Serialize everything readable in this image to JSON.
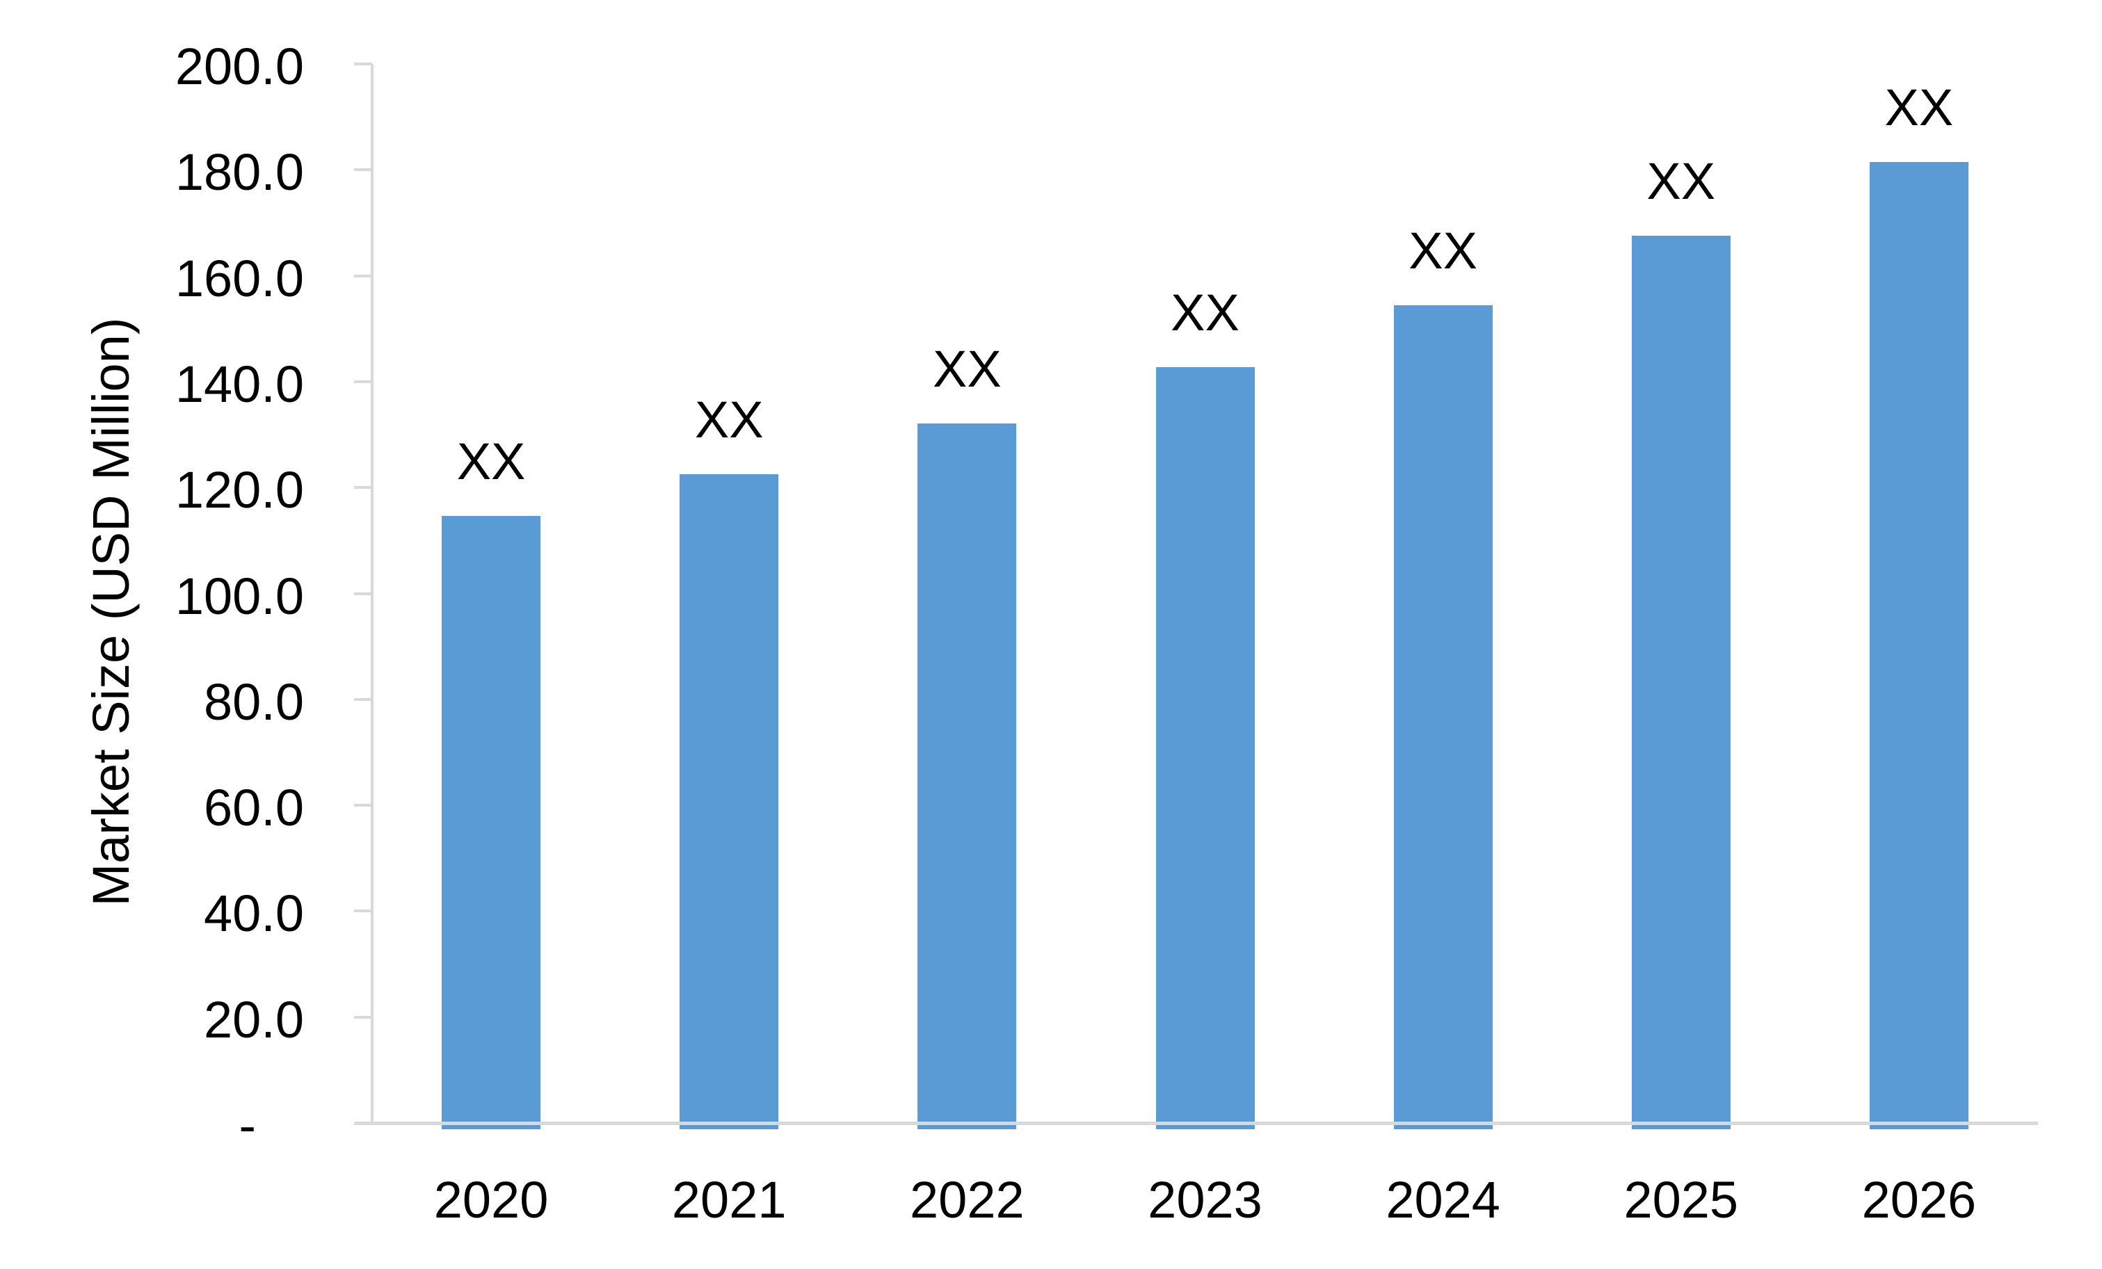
{
  "chart_data": {
    "type": "bar",
    "title": "",
    "categories": [
      "2020",
      "2021",
      "2022",
      "2023",
      "2024",
      "2025",
      "2026"
    ],
    "values": [
      114.6,
      122.5,
      132.1,
      142.7,
      154.4,
      167.6,
      181.5
    ],
    "bar_labels": [
      "XX",
      "XX",
      "XX",
      "XX",
      "XX",
      "XX",
      "XX"
    ],
    "xlabel": "",
    "ylabel": "Market Size (USD Million)",
    "ylim": [
      0,
      200
    ],
    "ytick_step": 20,
    "ytick_labels": [
      "200.0",
      "180.0",
      "160.0",
      "140.0",
      "120.0",
      "100.0",
      "80.0",
      "60.0",
      "40.0",
      "20.0",
      "-"
    ],
    "grid": false,
    "legend": "none",
    "bar_color": "#5B9BD5",
    "axis_color": "#D9D9D9",
    "text_color": "#000000"
  }
}
